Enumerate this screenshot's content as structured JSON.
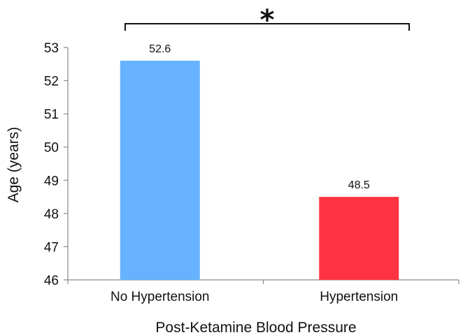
{
  "chart_data": {
    "type": "bar",
    "categories": [
      "No Hypertension",
      "Hypertension"
    ],
    "values": [
      52.6,
      48.5
    ],
    "data_labels": [
      "52.6",
      "48.5"
    ],
    "colors": [
      "#66b2ff",
      "#ff3344"
    ],
    "xlabel": "Post-Ketamine Blood Pressure",
    "ylabel": "Age (years)",
    "ylim": [
      46,
      53
    ],
    "yticks": [
      46,
      47,
      48,
      49,
      50,
      51,
      52,
      53
    ],
    "grid": false,
    "significance": {
      "between": [
        "No Hypertension",
        "Hypertension"
      ],
      "label": "*"
    }
  }
}
